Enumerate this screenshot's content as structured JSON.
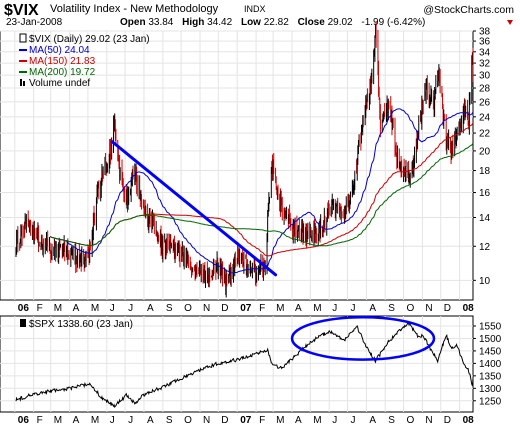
{
  "header": {
    "symbol": "$VIX",
    "name": "Volatility Index - New Methodology",
    "exchange": "INDX",
    "watermark": "@StockCharts.com",
    "date": "23-Jan-2008",
    "open_label": "Open",
    "open_value": "33.84",
    "high_label": "High",
    "high_value": "34.42",
    "low_label": "Low",
    "low_value": "22.82",
    "close_label": "Close",
    "close_value": "29.02",
    "change": "-1.99 (-6.42%)"
  },
  "colors": {
    "price": "#000000",
    "down_bar": "#cc0000",
    "ma50": "#0000cc",
    "ma150": "#cc0000",
    "ma200": "#006600",
    "trendline": "#0000ff",
    "annotation": "#0000ff",
    "grid": "#e4e4e4",
    "panel_border": "#000000",
    "change_down": "#cc0000"
  },
  "legend": [
    {
      "key": "vix",
      "label": "$VIX (Daily) 29.02 (23 Jan)",
      "color": "#000000"
    },
    {
      "key": "ma50",
      "label": "MA(50) 24.04",
      "color": "#0000cc"
    },
    {
      "key": "ma150",
      "label": "MA(150) 21.83",
      "color": "#cc0000"
    },
    {
      "key": "ma200",
      "label": "MA(200) 19.72",
      "color": "#006600"
    },
    {
      "key": "volume",
      "label": "Volume undef",
      "color": "#000000"
    }
  ],
  "spx_legend": "$SPX 1338.60 (23 Jan)",
  "chart_data": [
    {
      "type": "line",
      "subtype": "ohlc-bars",
      "title": "$VIX Volatility Index - New Methodology INDX",
      "scale": "log",
      "ylim": [
        9,
        38
      ],
      "yticks": [
        10,
        12,
        14,
        16,
        18,
        20,
        22,
        24,
        26,
        28,
        30,
        32,
        34,
        36,
        38
      ],
      "grid": true,
      "axis_side": "right",
      "legend_position": "top-left",
      "xticks": [
        "06",
        "F",
        "M",
        "A",
        "M",
        "J",
        "J",
        "A",
        "S",
        "O",
        "N",
        "D",
        "07",
        "F",
        "M",
        "A",
        "M",
        "J",
        "J",
        "A",
        "S",
        "O",
        "N",
        "D",
        "08"
      ],
      "xtick_bold": [
        "06",
        "07",
        "08"
      ],
      "x_start": "2006-01-03",
      "x_end": "2008-01-23",
      "anchors": [
        [
          "2006-01-03",
          12.0
        ],
        [
          "2006-01-20",
          13.5
        ],
        [
          "2006-02-10",
          12.5
        ],
        [
          "2006-03-01",
          11.8
        ],
        [
          "2006-04-03",
          11.5
        ],
        [
          "2006-04-20",
          11.2
        ],
        [
          "2006-05-05",
          11.6
        ],
        [
          "2006-05-15",
          15.5
        ],
        [
          "2006-05-25",
          17.5
        ],
        [
          "2006-06-08",
          20.0
        ],
        [
          "2006-06-13",
          23.5
        ],
        [
          "2006-06-20",
          18.5
        ],
        [
          "2006-07-05",
          15.0
        ],
        [
          "2006-07-17",
          18.0
        ],
        [
          "2006-07-28",
          15.0
        ],
        [
          "2006-08-15",
          13.5
        ],
        [
          "2006-09-01",
          12.0
        ],
        [
          "2006-10-01",
          11.5
        ],
        [
          "2006-10-20",
          10.8
        ],
        [
          "2006-11-15",
          10.2
        ],
        [
          "2006-12-01",
          10.8
        ],
        [
          "2006-12-15",
          9.8
        ],
        [
          "2007-01-05",
          11.5
        ],
        [
          "2007-01-25",
          10.5
        ],
        [
          "2007-02-15",
          10.5
        ],
        [
          "2007-02-27",
          18.5
        ],
        [
          "2007-03-05",
          17.0
        ],
        [
          "2007-03-15",
          14.5
        ],
        [
          "2007-04-05",
          13.0
        ],
        [
          "2007-04-25",
          12.8
        ],
        [
          "2007-05-15",
          12.8
        ],
        [
          "2007-06-07",
          15.0
        ],
        [
          "2007-06-25",
          14.0
        ],
        [
          "2007-07-10",
          16.0
        ],
        [
          "2007-07-20",
          20.5
        ],
        [
          "2007-07-31",
          25.5
        ],
        [
          "2007-08-10",
          29.0
        ],
        [
          "2007-08-16",
          37.0
        ],
        [
          "2007-08-24",
          22.0
        ],
        [
          "2007-09-07",
          26.0
        ],
        [
          "2007-09-20",
          19.0
        ],
        [
          "2007-10-05",
          17.5
        ],
        [
          "2007-10-12",
          16.8
        ],
        [
          "2007-10-25",
          22.0
        ],
        [
          "2007-11-08",
          28.0
        ],
        [
          "2007-11-20",
          25.5
        ],
        [
          "2007-11-27",
          30.5
        ],
        [
          "2007-12-10",
          21.0
        ],
        [
          "2007-12-20",
          20.0
        ],
        [
          "2007-12-31",
          22.5
        ],
        [
          "2008-01-10",
          25.5
        ],
        [
          "2008-01-16",
          23.5
        ],
        [
          "2008-01-22",
          33.5
        ],
        [
          "2008-01-23",
          29.0
        ]
      ],
      "series": [
        {
          "key": "ma50",
          "window": 50
        },
        {
          "key": "ma150",
          "window": 150
        },
        {
          "key": "ma200",
          "window": 200
        }
      ],
      "annotations": [
        {
          "type": "trendline",
          "start": [
            "2006-06-10",
            21.0
          ],
          "end": [
            "2007-03-05",
            10.3
          ]
        }
      ]
    },
    {
      "type": "line",
      "title": "$SPX 1338.60 (23 Jan)",
      "ylim": [
        1205,
        1590
      ],
      "yticks": [
        1250,
        1300,
        1350,
        1400,
        1450,
        1500,
        1550
      ],
      "grid": true,
      "axis_side": "right",
      "xticks": [
        "06",
        "F",
        "M",
        "A",
        "M",
        "J",
        "J",
        "A",
        "S",
        "O",
        "N",
        "D",
        "07",
        "F",
        "M",
        "A",
        "M",
        "J",
        "J",
        "A",
        "S",
        "O",
        "N",
        "D",
        "08"
      ],
      "xtick_bold": [
        "06",
        "07",
        "08"
      ],
      "x_start": "2006-01-03",
      "x_end": "2008-01-23",
      "anchors": [
        [
          "2006-01-03",
          1255
        ],
        [
          "2006-02-01",
          1275
        ],
        [
          "2006-03-01",
          1290
        ],
        [
          "2006-04-03",
          1300
        ],
        [
          "2006-05-05",
          1320
        ],
        [
          "2006-05-22",
          1265
        ],
        [
          "2006-06-13",
          1228
        ],
        [
          "2006-07-03",
          1272
        ],
        [
          "2006-07-17",
          1240
        ],
        [
          "2006-08-01",
          1275
        ],
        [
          "2006-09-01",
          1305
        ],
        [
          "2006-10-02",
          1340
        ],
        [
          "2006-11-01",
          1375
        ],
        [
          "2006-12-01",
          1400
        ],
        [
          "2007-01-02",
          1415
        ],
        [
          "2007-02-20",
          1455
        ],
        [
          "2007-02-27",
          1400
        ],
        [
          "2007-03-14",
          1380
        ],
        [
          "2007-04-02",
          1420
        ],
        [
          "2007-05-01",
          1485
        ],
        [
          "2007-06-01",
          1530
        ],
        [
          "2007-06-26",
          1495
        ],
        [
          "2007-07-16",
          1550
        ],
        [
          "2007-08-01",
          1465
        ],
        [
          "2007-08-16",
          1410
        ],
        [
          "2007-09-04",
          1480
        ],
        [
          "2007-10-09",
          1565
        ],
        [
          "2007-10-25",
          1505
        ],
        [
          "2007-11-02",
          1510
        ],
        [
          "2007-11-26",
          1410
        ],
        [
          "2007-12-10",
          1515
        ],
        [
          "2007-12-18",
          1460
        ],
        [
          "2007-12-27",
          1475
        ],
        [
          "2008-01-09",
          1395
        ],
        [
          "2008-01-15",
          1380
        ],
        [
          "2008-01-22",
          1310
        ],
        [
          "2008-01-23",
          1338.6
        ]
      ],
      "annotations": [
        {
          "type": "ellipse",
          "from": "2007-04-01",
          "to": "2007-11-20",
          "ymin": 1415,
          "ymax": 1585
        }
      ]
    }
  ]
}
